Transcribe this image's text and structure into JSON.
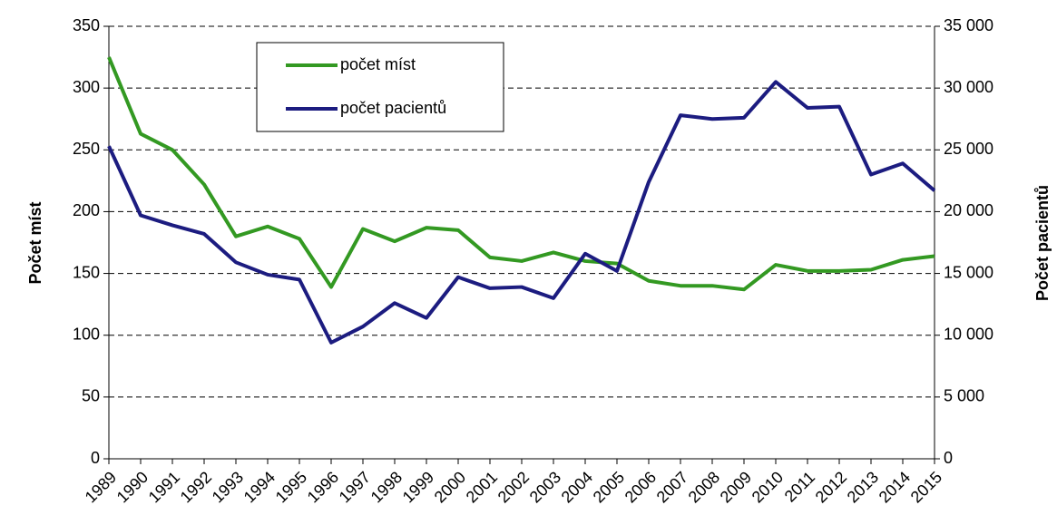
{
  "chart_data": {
    "type": "line",
    "categories": [
      "1989",
      "1990",
      "1991",
      "1992",
      "1993",
      "1994",
      "1995",
      "1996",
      "1997",
      "1998",
      "1999",
      "2000",
      "2001",
      "2002",
      "2003",
      "2004",
      "2005",
      "2006",
      "2007",
      "2008",
      "2009",
      "2010",
      "2011",
      "2012",
      "2013",
      "2014",
      "2015"
    ],
    "series": [
      {
        "name": "počet míst",
        "color": "#339922",
        "values": [
          325,
          263,
          250,
          222,
          180,
          188,
          178,
          139,
          186,
          176,
          187,
          185,
          163,
          160,
          167,
          160,
          158,
          144,
          140,
          140,
          137,
          157,
          152,
          152,
          153,
          161,
          164
        ]
      },
      {
        "name": "počet pacientů",
        "color": "#1c1c80",
        "axis": "y2",
        "values": [
          25300,
          19700,
          18900,
          18200,
          15900,
          14900,
          14500,
          9400,
          10700,
          12600,
          11400,
          14700,
          13800,
          13900,
          13000,
          16600,
          15200,
          22400,
          27800,
          27500,
          27600,
          30500,
          28400,
          28500,
          23000,
          23900,
          21700
        ]
      }
    ],
    "y_label": "Počet míst",
    "y2_label": "Počet pacientů",
    "ylim": [
      0,
      350
    ],
    "yticks": [
      0,
      50,
      100,
      150,
      200,
      250,
      300,
      350
    ],
    "y2lim": [
      0,
      35000
    ],
    "y2ticks": [
      0,
      {
        "value": 5000,
        "label": "5 000"
      },
      {
        "value": 10000,
        "label": "10 000"
      },
      {
        "value": 15000,
        "label": "15 000"
      },
      {
        "value": 20000,
        "label": "20 000"
      },
      {
        "value": 25000,
        "label": "25 000"
      },
      {
        "value": 30000,
        "label": "30 000"
      },
      {
        "value": 35000,
        "label": "35 000"
      }
    ],
    "grid": true,
    "legend": "top-left"
  }
}
